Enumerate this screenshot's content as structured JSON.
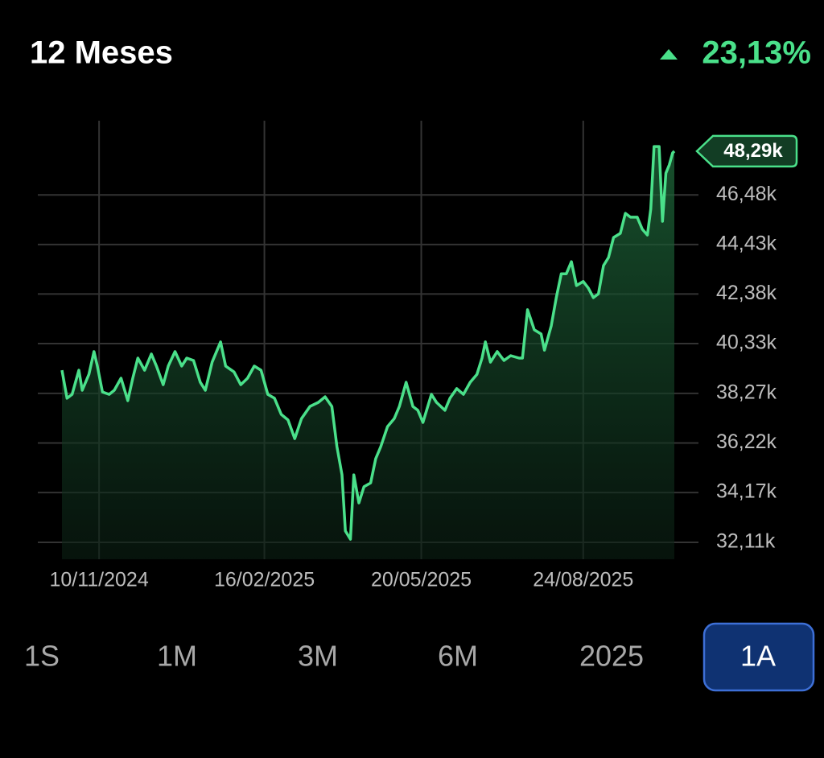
{
  "chart_data": {
    "type": "line",
    "title": "12 Meses",
    "change": {
      "value": 23.13,
      "label": "23,13%"
    },
    "color": "#4ae08a",
    "grid": true,
    "x": [
      "2024-10-19",
      "2024-10-22",
      "2024-10-25",
      "2024-10-29",
      "2024-10-31",
      "2024-11-04",
      "2024-11-07",
      "2024-11-09",
      "2024-11-12",
      "2024-11-16",
      "2024-11-19",
      "2024-11-23",
      "2024-11-27",
      "2024-11-30",
      "2024-12-03",
      "2024-12-07",
      "2024-12-11",
      "2024-12-14",
      "2024-12-18",
      "2024-12-21",
      "2024-12-25",
      "2024-12-29",
      "2025-01-01",
      "2025-01-05",
      "2025-01-09",
      "2025-01-12",
      "2025-01-16",
      "2025-01-21",
      "2025-01-24",
      "2025-01-29",
      "2025-02-02",
      "2025-02-06",
      "2025-02-10",
      "2025-02-14",
      "2025-02-18",
      "2025-02-22",
      "2025-02-26",
      "2025-03-02",
      "2025-03-06",
      "2025-03-10",
      "2025-03-15",
      "2025-03-20",
      "2025-03-24",
      "2025-03-28",
      "2025-03-31",
      "2025-04-03",
      "2025-04-05",
      "2025-04-08",
      "2025-04-10",
      "2025-04-13",
      "2025-04-16",
      "2025-04-20",
      "2025-04-23",
      "2025-04-26",
      "2025-04-30",
      "2025-05-04",
      "2025-05-07",
      "2025-05-11",
      "2025-05-15",
      "2025-05-18",
      "2025-05-21",
      "2025-05-26",
      "2025-05-29",
      "2025-06-03",
      "2025-06-06",
      "2025-06-10",
      "2025-06-14",
      "2025-06-18",
      "2025-06-22",
      "2025-06-25",
      "2025-06-27",
      "2025-06-30",
      "2025-07-04",
      "2025-07-08",
      "2025-07-12",
      "2025-07-17",
      "2025-07-19",
      "2025-07-22",
      "2025-07-26",
      "2025-07-30",
      "2025-08-01",
      "2025-08-05",
      "2025-08-08",
      "2025-08-11",
      "2025-08-14",
      "2025-08-17",
      "2025-08-20",
      "2025-08-24",
      "2025-08-27",
      "2025-08-30",
      "2025-09-02",
      "2025-09-05",
      "2025-09-08",
      "2025-09-11",
      "2025-09-15",
      "2025-09-18",
      "2025-09-21",
      "2025-09-25",
      "2025-09-28",
      "2025-10-01",
      "2025-10-03",
      "2025-10-05",
      "2025-10-08",
      "2025-10-10",
      "2025-10-12",
      "2025-10-14",
      "2025-10-16",
      "2025-10-17"
    ],
    "values": [
      39.23,
      38.07,
      38.23,
      39.23,
      38.4,
      39.06,
      40.0,
      39.4,
      38.33,
      38.23,
      38.4,
      38.9,
      37.97,
      38.9,
      39.73,
      39.23,
      39.9,
      39.4,
      38.63,
      39.4,
      40.0,
      39.4,
      39.73,
      39.63,
      38.73,
      38.4,
      39.56,
      40.4,
      39.4,
      39.16,
      38.63,
      38.9,
      39.4,
      39.23,
      38.23,
      38.07,
      37.4,
      37.17,
      36.4,
      37.23,
      37.73,
      37.9,
      38.13,
      37.73,
      36.07,
      34.9,
      32.58,
      32.24,
      34.9,
      33.74,
      34.41,
      34.57,
      35.57,
      36.07,
      36.9,
      37.23,
      37.73,
      38.73,
      37.73,
      37.57,
      37.07,
      38.23,
      37.9,
      37.57,
      38.07,
      38.47,
      38.23,
      38.73,
      39.06,
      39.73,
      40.4,
      39.56,
      40.0,
      39.63,
      39.83,
      39.73,
      39.73,
      41.73,
      40.9,
      40.73,
      40.06,
      41.06,
      42.23,
      43.22,
      43.22,
      43.72,
      42.73,
      42.9,
      42.63,
      42.23,
      42.39,
      43.56,
      43.89,
      44.72,
      44.89,
      45.72,
      45.56,
      45.56,
      45.06,
      44.82,
      45.89,
      48.48,
      48.48,
      45.39,
      47.38,
      47.72,
      48.22,
      48.29
    ],
    "last_label": {
      "value": 48.29,
      "label": "48,29k"
    },
    "xlim": [
      "2024-10-19",
      "2025-10-17"
    ],
    "xticks": [
      {
        "value": "2024-11-10",
        "label": "10/11/2024"
      },
      {
        "value": "2025-02-16",
        "label": "16/02/2025"
      },
      {
        "value": "2025-05-20",
        "label": "20/05/2025"
      },
      {
        "value": "2025-08-24",
        "label": "24/08/2025"
      }
    ],
    "ylim": [
      31.41,
      49.55
    ],
    "yticks": [
      {
        "value": 32.11,
        "label": "32,11k"
      },
      {
        "value": 34.17,
        "label": "34,17k"
      },
      {
        "value": 36.22,
        "label": "36,22k"
      },
      {
        "value": 38.27,
        "label": "38,27k"
      },
      {
        "value": 40.33,
        "label": "40,33k"
      },
      {
        "value": 42.38,
        "label": "42,38k"
      },
      {
        "value": 44.43,
        "label": "44,43k"
      },
      {
        "value": 46.48,
        "label": "46,48k"
      }
    ]
  },
  "ranges": [
    "1S",
    "1M",
    "3M",
    "6M",
    "2025",
    "1A"
  ],
  "selected": "1A"
}
